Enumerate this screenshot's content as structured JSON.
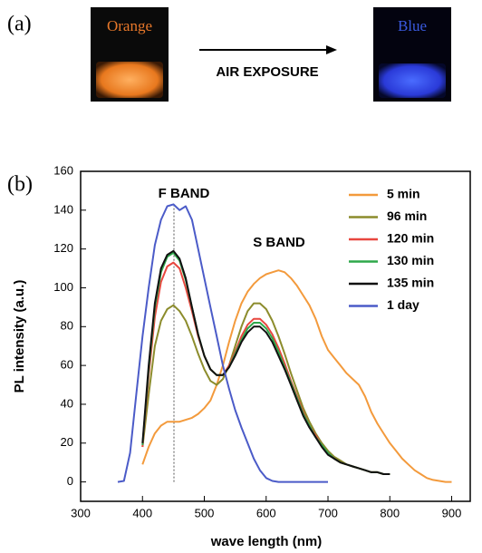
{
  "panel_a": {
    "label": "(a)",
    "left_vial": "Orange",
    "right_vial": "Blue",
    "arrow_label": "AIR EXPOSURE"
  },
  "panel_b_label": "(b)",
  "chart_data": {
    "type": "line",
    "x_label": "wave length (nm)",
    "y_label": "PL intensity (a.u.)",
    "annotations": [
      "F BAND",
      "S BAND"
    ],
    "xlim": [
      300,
      930
    ],
    "ylim": [
      -10,
      160
    ],
    "xticks": [
      300,
      400,
      500,
      600,
      700,
      800,
      900
    ],
    "yticks": [
      0,
      20,
      40,
      60,
      80,
      100,
      120,
      140,
      160
    ],
    "legend": "upper right",
    "x": [
      360,
      370,
      380,
      390,
      400,
      410,
      420,
      430,
      440,
      450,
      460,
      470,
      480,
      490,
      500,
      510,
      520,
      530,
      540,
      550,
      560,
      570,
      580,
      590,
      600,
      610,
      620,
      630,
      640,
      650,
      660,
      670,
      680,
      690,
      700,
      710,
      720,
      730,
      740,
      750,
      760,
      770,
      780,
      790,
      800,
      810,
      820,
      830,
      840,
      850,
      860,
      870,
      880,
      890,
      900
    ],
    "series": [
      {
        "name": "5 min",
        "color": "#f39a3c",
        "values": [
          null,
          null,
          null,
          null,
          9,
          18,
          25,
          29,
          31,
          31,
          31,
          32,
          33,
          35,
          38,
          42,
          50,
          60,
          72,
          83,
          92,
          98,
          102,
          105,
          107,
          108,
          109,
          108,
          105,
          101,
          96,
          91,
          84,
          75,
          68,
          64,
          60,
          56,
          53,
          50,
          44,
          36,
          30,
          25,
          20,
          16,
          12,
          9,
          6,
          4,
          2,
          1,
          0.5,
          0,
          0
        ]
      },
      {
        "name": "96 min",
        "color": "#8c8c2c",
        "values": [
          null,
          null,
          null,
          null,
          18,
          45,
          70,
          83,
          89,
          91,
          88,
          83,
          75,
          66,
          58,
          52,
          50,
          53,
          60,
          70,
          80,
          88,
          92,
          92,
          89,
          83,
          75,
          66,
          56,
          47,
          38,
          31,
          25,
          20,
          16,
          13,
          11,
          9,
          8,
          7,
          6,
          5,
          5,
          4,
          4,
          null,
          null,
          null,
          null,
          null,
          null,
          null,
          null,
          null,
          null
        ]
      },
      {
        "name": "120 min",
        "color": "#e8473f",
        "values": [
          null,
          null,
          null,
          null,
          18,
          55,
          85,
          103,
          111,
          113,
          110,
          100,
          88,
          75,
          65,
          58,
          55,
          55,
          60,
          67,
          75,
          81,
          84,
          84,
          81,
          76,
          69,
          61,
          52,
          44,
          36,
          29,
          24,
          19,
          15,
          12,
          10,
          9,
          8,
          7,
          6,
          5,
          5,
          4,
          4,
          null,
          null,
          null,
          null,
          null,
          null,
          null,
          null,
          null,
          null
        ]
      },
      {
        "name": "130 min",
        "color": "#2ea84a",
        "values": [
          null,
          null,
          null,
          null,
          19,
          58,
          90,
          108,
          116,
          118,
          114,
          104,
          90,
          76,
          65,
          58,
          55,
          55,
          59,
          66,
          73,
          79,
          82,
          82,
          79,
          74,
          67,
          59,
          51,
          43,
          35,
          29,
          23,
          19,
          15,
          12,
          10,
          9,
          8,
          7,
          6,
          5,
          5,
          4,
          4,
          null,
          null,
          null,
          null,
          null,
          null,
          null,
          null,
          null,
          null
        ]
      },
      {
        "name": "135 min",
        "color": "#111111",
        "values": [
          null,
          null,
          null,
          null,
          20,
          60,
          92,
          110,
          117,
          119,
          115,
          105,
          90,
          76,
          65,
          58,
          55,
          55,
          59,
          65,
          72,
          77,
          80,
          80,
          77,
          72,
          65,
          58,
          50,
          42,
          34,
          28,
          23,
          18,
          14,
          12,
          10,
          9,
          8,
          7,
          6,
          5,
          5,
          4,
          4,
          null,
          null,
          null,
          null,
          null,
          null,
          null,
          null,
          null,
          null
        ]
      },
      {
        "name": "1 day",
        "color": "#4b5bc8",
        "values": [
          0,
          0.5,
          15,
          45,
          75,
          100,
          122,
          135,
          142,
          143,
          140,
          142,
          135,
          120,
          105,
          90,
          75,
          60,
          48,
          37,
          28,
          20,
          12,
          6,
          2,
          0.5,
          0,
          0,
          0,
          0,
          0,
          0,
          0,
          0,
          0,
          null,
          null,
          null,
          null,
          null,
          null,
          null,
          null,
          null,
          null,
          null,
          null,
          null,
          null,
          null,
          null,
          null,
          null,
          null,
          null
        ]
      }
    ]
  }
}
